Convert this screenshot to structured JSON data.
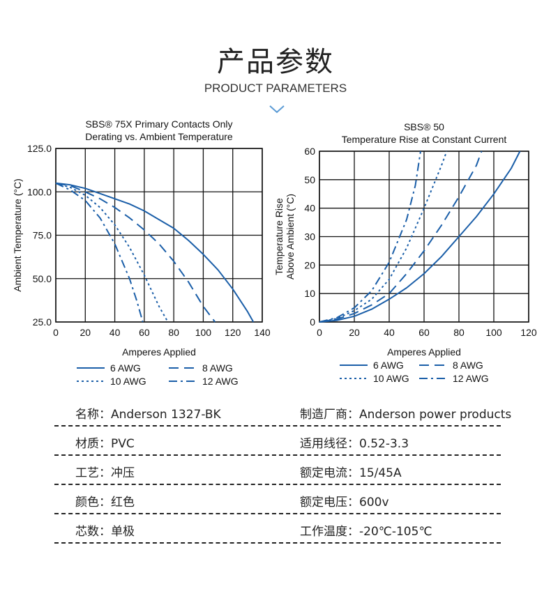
{
  "header": {
    "title_cn": "产品参数",
    "title_en": "PRODUCT PARAMETERS",
    "chevron_color": "#5b9bd5"
  },
  "chart_data": [
    {
      "type": "line",
      "title_line1": "SBS® 75X Primary Contacts Only",
      "title_line2": "Derating vs. Ambient Temperature",
      "xlabel": "Amperes Applied",
      "ylabel": "Ambient Temperature (°C)",
      "xlim": [
        0,
        140
      ],
      "ylim": [
        25,
        125
      ],
      "xticks": [
        "0",
        "20",
        "40",
        "60",
        "80",
        "100",
        "120",
        "140"
      ],
      "yticks": [
        "25.0",
        "50.0",
        "75.0",
        "100.0",
        "125.0"
      ],
      "grid": true,
      "color": "#1a5ea8",
      "series": [
        {
          "name": "6 AWG",
          "style": "solid",
          "x": [
            0,
            10,
            20,
            30,
            40,
            50,
            60,
            70,
            80,
            90,
            100,
            110,
            120,
            130,
            134
          ],
          "y": [
            105,
            104,
            102,
            99,
            96,
            93,
            89,
            84,
            79,
            72,
            64,
            55,
            44,
            31,
            25
          ]
        },
        {
          "name": "8 AWG",
          "style": "dashed",
          "x": [
            0,
            10,
            20,
            30,
            40,
            50,
            60,
            70,
            80,
            90,
            100,
            108
          ],
          "y": [
            105,
            103.5,
            100,
            96,
            91,
            85,
            78,
            70,
            60,
            48,
            34,
            25
          ]
        },
        {
          "name": "10 AWG",
          "style": "dotted",
          "x": [
            0,
            10,
            20,
            30,
            40,
            50,
            60,
            70,
            76
          ],
          "y": [
            105,
            102.5,
            98,
            91,
            81,
            68,
            52,
            34,
            25
          ]
        },
        {
          "name": "12 AWG",
          "style": "dashdot",
          "x": [
            0,
            10,
            20,
            30,
            40,
            50,
            55,
            59
          ],
          "y": [
            105,
            101,
            95,
            85,
            70,
            50,
            37,
            25
          ]
        }
      ],
      "legend_placement": "bottom"
    },
    {
      "type": "line",
      "title_line1": "SBS® 50",
      "title_line2": "Temperature Rise at Constant Current",
      "xlabel": "Amperes Applied",
      "ylabel_line1": "Temperature Rise",
      "ylabel_line2": "Above Ambient (°C)",
      "xlim": [
        0,
        120
      ],
      "ylim": [
        0,
        60
      ],
      "xticks": [
        "0",
        "20",
        "40",
        "60",
        "80",
        "100",
        "120"
      ],
      "yticks": [
        "0",
        "10",
        "20",
        "30",
        "40",
        "50",
        "60"
      ],
      "grid": true,
      "color": "#1a5ea8",
      "series": [
        {
          "name": "6 AWG",
          "style": "solid",
          "x": [
            0,
            10,
            20,
            30,
            40,
            50,
            60,
            70,
            80,
            90,
            100,
            110,
            115
          ],
          "y": [
            0,
            0.6,
            2,
            4.5,
            8,
            12,
            17,
            23,
            30,
            37,
            45,
            54,
            60
          ]
        },
        {
          "name": "8 AWG",
          "style": "dashed",
          "x": [
            0,
            10,
            20,
            30,
            40,
            50,
            60,
            70,
            80,
            90,
            93
          ],
          "y": [
            0,
            1,
            3,
            6,
            10,
            17,
            25,
            34,
            44,
            55,
            60
          ]
        },
        {
          "name": "10 AWG",
          "style": "dotted",
          "x": [
            0,
            10,
            20,
            30,
            40,
            50,
            60,
            70,
            73
          ],
          "y": [
            0,
            1.2,
            4,
            8,
            15,
            26,
            40,
            55,
            60
          ]
        },
        {
          "name": "12 AWG",
          "style": "dashdot",
          "x": [
            0,
            10,
            20,
            30,
            40,
            50,
            55,
            58
          ],
          "y": [
            0,
            1.5,
            5,
            11,
            21,
            36,
            48,
            60
          ]
        }
      ],
      "legend_placement": "bottom"
    }
  ],
  "params": [
    {
      "left": "名称：Anderson 1327-BK",
      "right": "制造厂商：Anderson power products"
    },
    {
      "left": "材质：PVC",
      "right": "适用线径：0.52-3.3"
    },
    {
      "left": "工艺：冲压",
      "right": "额定电流：15/45A"
    },
    {
      "left": "颜色：红色",
      "right": "额定电压：600v"
    },
    {
      "left": "芯数：单极",
      "right": "工作温度：-20℃-105℃"
    }
  ]
}
